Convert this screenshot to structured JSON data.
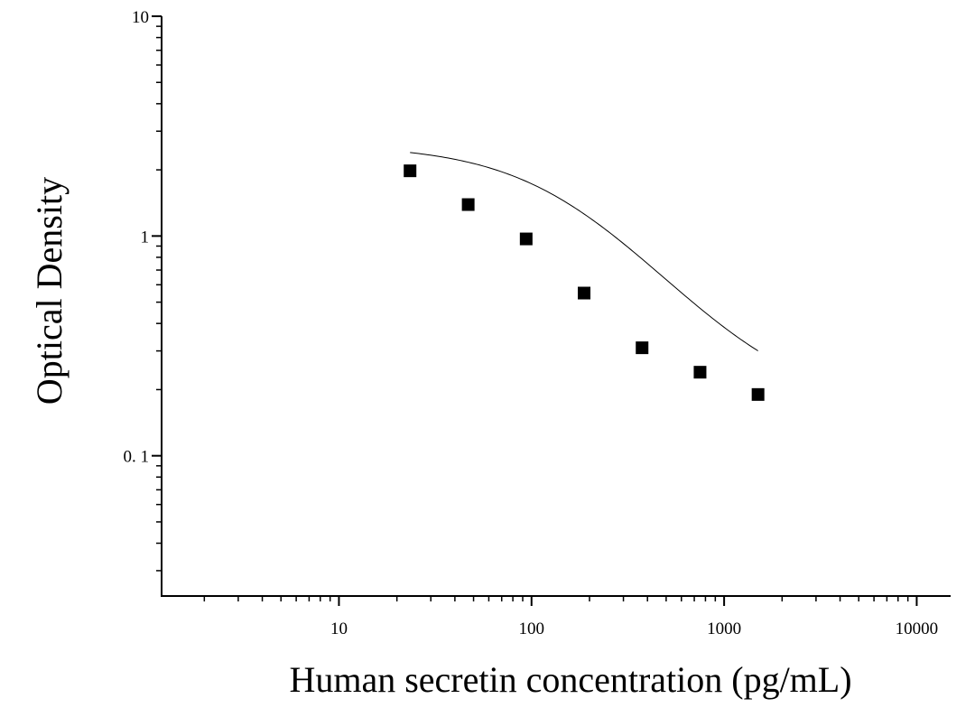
{
  "chart_data": {
    "type": "scatter",
    "title": "",
    "xlabel": "Human secretin concentration (pg/mL)",
    "ylabel": "Optical Density",
    "x_scale": "log",
    "y_scale": "log",
    "xlim": [
      1.2,
      15000
    ],
    "ylim": [
      0.023,
      10
    ],
    "x_ticks": [
      {
        "value": 10,
        "label": "10"
      },
      {
        "value": 100,
        "label": "100"
      },
      {
        "value": 1000,
        "label": "1000"
      },
      {
        "value": 10000,
        "label": "10000"
      }
    ],
    "y_ticks": [
      {
        "value": 0.1,
        "label": "0. 1"
      },
      {
        "value": 1,
        "label": "1"
      },
      {
        "value": 10,
        "label": "10"
      }
    ],
    "grid": false,
    "legend": "none",
    "marker_color": "#000000",
    "series": [
      {
        "x": [
          23.4,
          46.9,
          93.8,
          187.5,
          375,
          750,
          1500
        ],
        "y": [
          1.98,
          1.39,
          0.97,
          0.55,
          0.31,
          0.24,
          0.19
        ]
      }
    ],
    "fit_curve": {
      "type": "4PL",
      "top": 2.6,
      "bottom": 0.16,
      "ec50": 160,
      "hill": 1.25,
      "x_range": [
        23.4,
        1500
      ]
    }
  }
}
